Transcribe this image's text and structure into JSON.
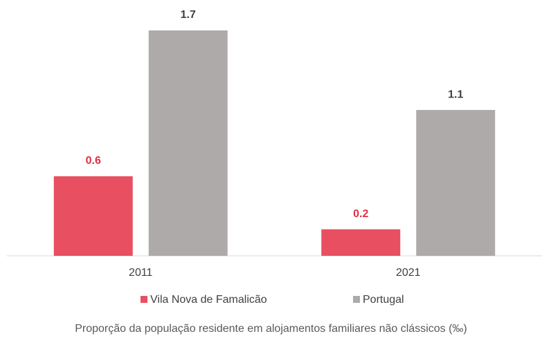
{
  "chart_data": {
    "type": "bar",
    "title": "Proporção da população residente em alojamentos familiares não clássicos (‰)",
    "categories": [
      "2011",
      "2021"
    ],
    "series": [
      {
        "name": "Vila Nova de Famalicão",
        "color": "#e84f60",
        "label_color": "#e02f45",
        "values": [
          0.6,
          0.2
        ]
      },
      {
        "name": "Portugal",
        "color": "#aeaaaa",
        "label_color": "#404040",
        "values": [
          1.7,
          1.1
        ]
      }
    ],
    "legend": "bottom"
  }
}
